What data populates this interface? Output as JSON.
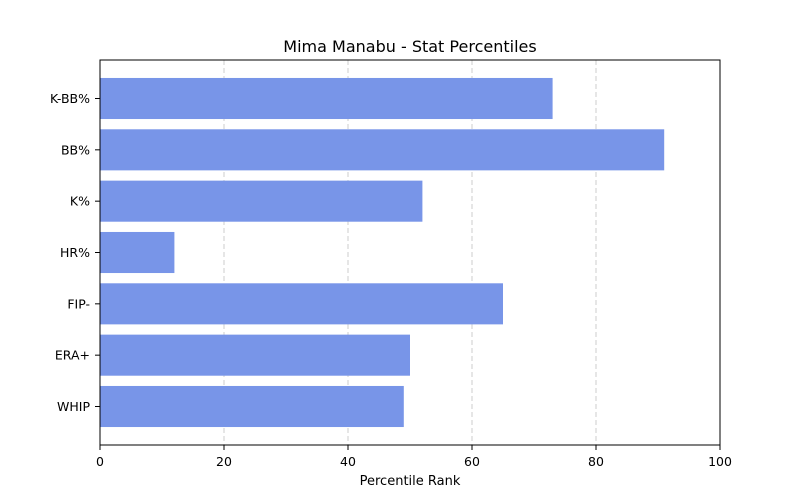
{
  "chart_data": {
    "type": "bar",
    "orientation": "horizontal",
    "title": "Mima Manabu - Stat Percentiles",
    "xlabel": "Percentile Rank",
    "ylabel": "",
    "categories": [
      "K-BB%",
      "BB%",
      "K%",
      "HR%",
      "FIP-",
      "ERA+",
      "WHIP"
    ],
    "values": [
      73,
      91,
      52,
      12,
      65,
      50,
      49
    ],
    "xlim": [
      0,
      100
    ],
    "xticks": [
      0,
      20,
      40,
      60,
      80,
      100
    ],
    "grid": "x-dashed",
    "legend": "none",
    "bar_color": "#7895e8",
    "grid_color": "#c8c8c8"
  }
}
